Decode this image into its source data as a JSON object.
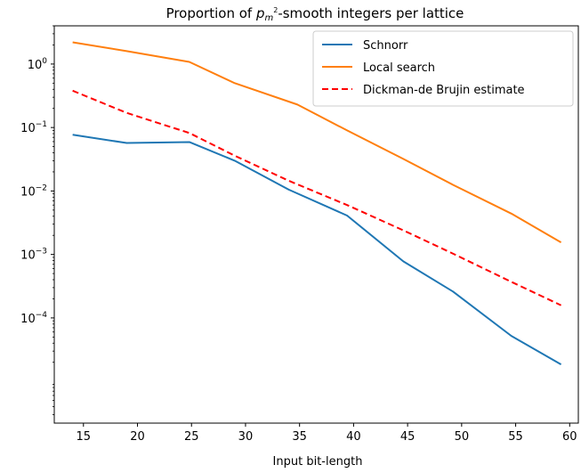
{
  "chart_data": {
    "type": "line",
    "title_prefix": "Proportion of ",
    "title_math_base": "p",
    "title_math_sub": "m",
    "title_math_sup": "2",
    "title_suffix": "-smooth integers per lattice",
    "xlabel": "Input bit-length",
    "ylabel": "",
    "xlim": [
      12.3,
      60.8
    ],
    "ylim": [
      2.2e-06,
      4.0
    ],
    "yscale": "log",
    "grid": false,
    "legend_position": "top-right",
    "xticks": [
      15,
      20,
      25,
      30,
      35,
      40,
      45,
      50,
      55,
      60
    ],
    "xtick_labels": [
      "15",
      "20",
      "25",
      "30",
      "35",
      "40",
      "45",
      "50",
      "55",
      "60"
    ],
    "yticks": [
      {
        "value": 1,
        "base": "10",
        "exp": "0"
      },
      {
        "value": 0.1,
        "base": "10",
        "exp": "−1"
      },
      {
        "value": 0.01,
        "base": "10",
        "exp": "−2"
      },
      {
        "value": 0.001,
        "base": "10",
        "exp": "−3"
      },
      {
        "value": 0.0001,
        "base": "10",
        "exp": "−4"
      }
    ],
    "series": [
      {
        "name": "Schnorr",
        "color": "#1f77b4",
        "dash": "solid",
        "x": [
          14,
          19,
          24.8,
          29,
          34,
          39.4,
          44.6,
          49.2,
          54.6,
          59.2
        ],
        "y": [
          0.077,
          0.057,
          0.059,
          0.03,
          0.0105,
          0.0041,
          0.00078,
          0.00026,
          5.2e-05,
          1.85e-05
        ]
      },
      {
        "name": "Local search",
        "color": "#ff7f0e",
        "dash": "solid",
        "x": [
          14,
          19,
          24.8,
          29,
          34.8,
          39.4,
          44.6,
          49.2,
          54.6,
          59.2
        ],
        "y": [
          2.2,
          1.6,
          1.08,
          0.5,
          0.23,
          0.09,
          0.032,
          0.0125,
          0.0044,
          0.00155
        ]
      },
      {
        "name": "Dickman-de Brujin estimate",
        "color": "#ff0000",
        "dash": "dashed",
        "x": [
          14,
          19,
          24.8,
          29,
          34,
          39.4,
          44.6,
          49.2,
          54.6,
          59.2
        ],
        "y": [
          0.38,
          0.17,
          0.082,
          0.036,
          0.0145,
          0.006,
          0.0024,
          0.00103,
          0.00037,
          0.000158
        ]
      }
    ]
  }
}
